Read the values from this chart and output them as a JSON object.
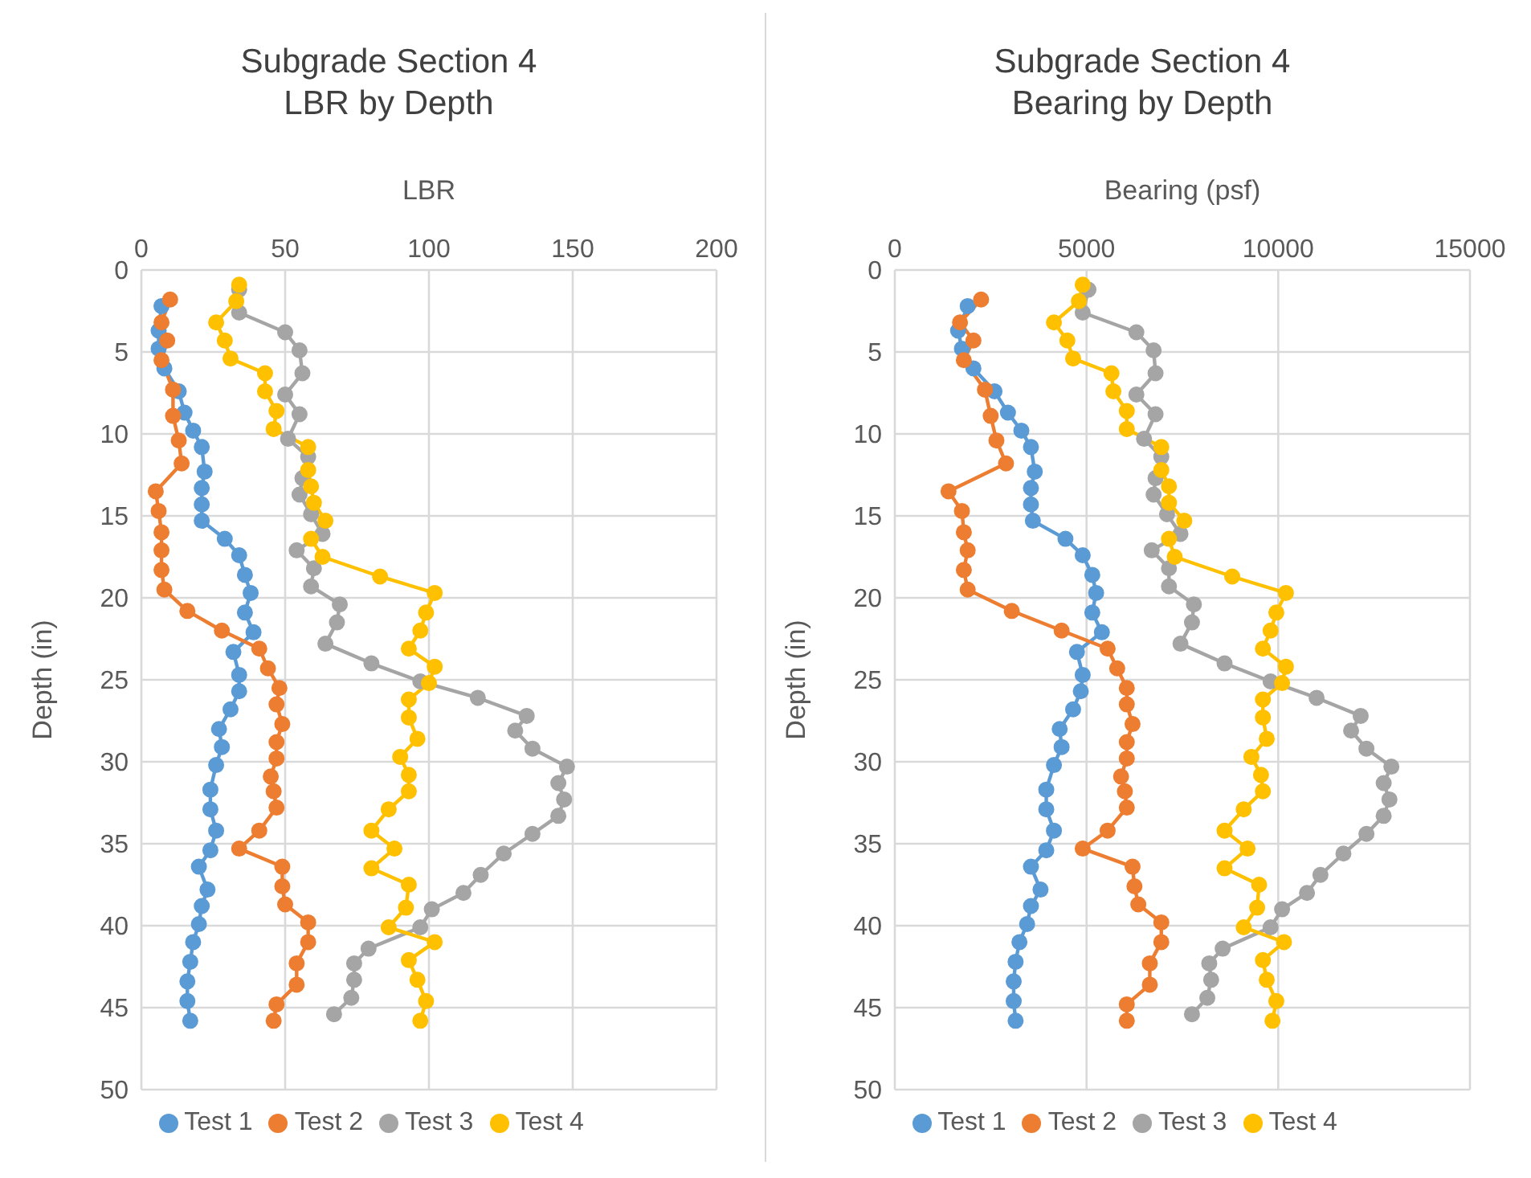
{
  "chart_data": [
    {
      "type": "line",
      "title": "Subgrade Section 4\nLBR by Depth",
      "xlabel": "LBR",
      "ylabel": "Depth (in)",
      "xlim": [
        0,
        200
      ],
      "xticks": [
        0,
        50,
        100,
        150,
        200
      ],
      "ylim": [
        50,
        0
      ],
      "yticks": [
        0,
        5,
        10,
        15,
        20,
        25,
        30,
        35,
        40,
        45,
        50
      ],
      "grid": true,
      "legend": "bottom",
      "marker": "circle",
      "series": [
        {
          "name": "Test 1",
          "color": "#5b9bd5",
          "x": [
            7,
            6,
            6,
            8,
            13,
            15,
            18,
            21,
            22,
            21,
            21,
            21,
            29,
            34,
            36,
            38,
            36,
            39,
            32,
            34,
            34,
            31,
            27,
            28,
            26,
            24,
            24,
            26,
            24,
            20,
            23,
            21,
            20,
            18,
            17,
            16,
            16,
            17
          ],
          "values": [
            2.2,
            3.7,
            4.8,
            6.0,
            7.4,
            8.7,
            9.8,
            10.8,
            12.3,
            13.3,
            14.3,
            15.3,
            16.4,
            17.4,
            18.6,
            19.7,
            20.9,
            22.1,
            23.3,
            24.7,
            25.7,
            26.8,
            28.0,
            29.1,
            30.2,
            31.7,
            32.9,
            34.2,
            35.4,
            36.4,
            37.8,
            38.8,
            39.9,
            41.0,
            42.2,
            43.4,
            44.6,
            45.8
          ]
        },
        {
          "name": "Test 2",
          "color": "#ed7d31",
          "x": [
            10,
            7,
            9,
            7,
            11,
            11,
            13,
            14,
            5,
            6,
            7,
            7,
            7,
            8,
            16,
            28,
            41,
            44,
            48,
            47,
            49,
            47,
            47,
            45,
            46,
            47,
            41,
            34,
            49,
            49,
            50,
            58,
            58,
            54,
            54,
            47,
            46
          ],
          "values": [
            1.8,
            3.2,
            4.3,
            5.5,
            7.3,
            8.9,
            10.4,
            11.8,
            13.5,
            14.7,
            16.0,
            17.1,
            18.3,
            19.5,
            20.8,
            22.0,
            23.1,
            24.3,
            25.5,
            26.5,
            27.7,
            28.8,
            29.8,
            30.9,
            31.8,
            32.8,
            34.2,
            35.3,
            36.4,
            37.6,
            38.7,
            39.8,
            41.0,
            42.3,
            43.6,
            44.8,
            45.8
          ]
        },
        {
          "name": "Test 3",
          "color": "#a5a5a5",
          "x": [
            34,
            34,
            50,
            55,
            56,
            50,
            55,
            51,
            58,
            56,
            55,
            59,
            63,
            54,
            60,
            59,
            69,
            68,
            64,
            80,
            97,
            117,
            134,
            130,
            136,
            148,
            145,
            147,
            145,
            136,
            126,
            118,
            112,
            101,
            97,
            79,
            74,
            74,
            73,
            67
          ],
          "values": [
            1.2,
            2.6,
            3.8,
            4.9,
            6.3,
            7.6,
            8.8,
            10.3,
            11.4,
            12.7,
            13.7,
            14.9,
            16.1,
            17.1,
            18.2,
            19.3,
            20.4,
            21.5,
            22.8,
            24.0,
            25.1,
            26.1,
            27.2,
            28.1,
            29.2,
            30.3,
            31.3,
            32.3,
            33.3,
            34.4,
            35.6,
            36.9,
            38.0,
            39.0,
            40.1,
            41.4,
            42.3,
            43.3,
            44.4,
            45.4
          ]
        },
        {
          "name": "Test 4",
          "color": "#ffc000",
          "x": [
            34,
            33,
            26,
            29,
            31,
            43,
            43,
            47,
            46,
            58,
            58,
            59,
            60,
            64,
            59,
            63,
            83,
            102,
            99,
            97,
            93,
            102,
            100,
            93,
            93,
            96,
            90,
            93,
            93,
            86,
            80,
            88,
            80,
            93,
            92,
            86,
            102,
            93,
            96,
            99,
            97
          ],
          "values": [
            0.9,
            1.9,
            3.2,
            4.3,
            5.4,
            6.3,
            7.4,
            8.6,
            9.7,
            10.8,
            12.2,
            13.2,
            14.2,
            15.3,
            16.4,
            17.5,
            18.7,
            19.7,
            20.9,
            22.0,
            23.1,
            24.2,
            25.2,
            26.2,
            27.3,
            28.6,
            29.7,
            30.8,
            31.8,
            32.9,
            34.2,
            35.3,
            36.5,
            37.5,
            38.9,
            40.1,
            41.0,
            42.1,
            43.3,
            44.6,
            45.8
          ]
        }
      ]
    },
    {
      "type": "line",
      "title": "Subgrade Section 4\nBearing by Depth",
      "xlabel": "Bearing (psf)",
      "ylabel": "Depth (in)",
      "xlim": [
        0,
        15000
      ],
      "xticks": [
        0,
        5000,
        10000,
        15000
      ],
      "ylim": [
        50,
        0
      ],
      "yticks": [
        0,
        5,
        10,
        15,
        20,
        25,
        30,
        35,
        40,
        45,
        50
      ],
      "grid": true,
      "legend": "bottom",
      "marker": "circle",
      "series": [
        {
          "name": "Test 1",
          "color": "#5b9bd5",
          "x": [
            1900,
            1650,
            1750,
            2050,
            2600,
            2950,
            3300,
            3550,
            3650,
            3550,
            3550,
            3600,
            4450,
            4900,
            5150,
            5250,
            5150,
            5400,
            4750,
            4900,
            4850,
            4650,
            4300,
            4350,
            4150,
            3950,
            3950,
            4150,
            3950,
            3550,
            3800,
            3550,
            3450,
            3250,
            3150,
            3100,
            3100,
            3150
          ],
          "values": [
            2.2,
            3.7,
            4.8,
            6.0,
            7.4,
            8.7,
            9.8,
            10.8,
            12.3,
            13.3,
            14.3,
            15.3,
            16.4,
            17.4,
            18.6,
            19.7,
            20.9,
            22.1,
            23.3,
            24.7,
            25.7,
            26.8,
            28.0,
            29.1,
            30.2,
            31.7,
            32.9,
            34.2,
            35.4,
            36.4,
            37.8,
            38.8,
            39.9,
            41.0,
            42.2,
            43.4,
            44.6,
            45.8
          ]
        },
        {
          "name": "Test 2",
          "color": "#ed7d31",
          "x": [
            2250,
            1700,
            2050,
            1800,
            2350,
            2500,
            2650,
            2900,
            1400,
            1750,
            1800,
            1900,
            1800,
            1900,
            3050,
            4350,
            5550,
            5800,
            6050,
            6050,
            6200,
            6050,
            6050,
            5900,
            6000,
            6050,
            5550,
            4900,
            6200,
            6250,
            6350,
            6950,
            6950,
            6650,
            6650,
            6050,
            6050
          ],
          "values": [
            1.8,
            3.2,
            4.3,
            5.5,
            7.3,
            8.9,
            10.4,
            11.8,
            13.5,
            14.7,
            16.0,
            17.1,
            18.3,
            19.5,
            20.8,
            22.0,
            23.1,
            24.3,
            25.5,
            26.5,
            27.7,
            28.8,
            29.8,
            30.9,
            31.8,
            32.8,
            34.2,
            35.3,
            36.4,
            37.6,
            38.7,
            39.8,
            41.0,
            42.3,
            43.6,
            44.8,
            45.8
          ]
        },
        {
          "name": "Test 3",
          "color": "#a5a5a5",
          "x": [
            5050,
            4900,
            6300,
            6750,
            6800,
            6300,
            6800,
            6500,
            6950,
            6800,
            6750,
            7100,
            7450,
            6700,
            7150,
            7150,
            7800,
            7750,
            7450,
            8600,
            9800,
            11000,
            12150,
            11900,
            12300,
            12950,
            12750,
            12900,
            12750,
            12300,
            11700,
            11100,
            10750,
            10100,
            9800,
            8550,
            8200,
            8250,
            8150,
            7750
          ],
          "values": [
            1.2,
            2.6,
            3.8,
            4.9,
            6.3,
            7.6,
            8.8,
            10.3,
            11.4,
            12.7,
            13.7,
            14.9,
            16.1,
            17.1,
            18.2,
            19.3,
            20.4,
            21.5,
            22.8,
            24.0,
            25.1,
            26.1,
            27.2,
            28.1,
            29.2,
            30.3,
            31.3,
            32.3,
            33.3,
            34.4,
            35.6,
            36.9,
            38.0,
            39.0,
            40.1,
            41.4,
            42.3,
            43.3,
            44.4,
            45.4
          ]
        },
        {
          "name": "Test 4",
          "color": "#ffc000",
          "x": [
            4900,
            4800,
            4150,
            4500,
            4650,
            5650,
            5700,
            6050,
            6050,
            6950,
            6950,
            7150,
            7150,
            7550,
            7150,
            7300,
            8800,
            10200,
            9950,
            9800,
            9600,
            10200,
            10100,
            9600,
            9600,
            9700,
            9300,
            9550,
            9600,
            9100,
            8600,
            9200,
            8600,
            9500,
            9450,
            9100,
            10150,
            9600,
            9700,
            9950,
            9850
          ],
          "values": [
            0.9,
            1.9,
            3.2,
            4.3,
            5.4,
            6.3,
            7.4,
            8.6,
            9.7,
            10.8,
            12.2,
            13.2,
            14.2,
            15.3,
            16.4,
            17.5,
            18.7,
            19.7,
            20.9,
            22.0,
            23.1,
            24.2,
            25.2,
            26.2,
            27.3,
            28.6,
            29.7,
            30.8,
            31.8,
            32.9,
            34.2,
            35.3,
            36.5,
            37.5,
            38.9,
            40.1,
            41.0,
            42.1,
            43.3,
            44.6,
            45.8
          ]
        }
      ]
    }
  ]
}
